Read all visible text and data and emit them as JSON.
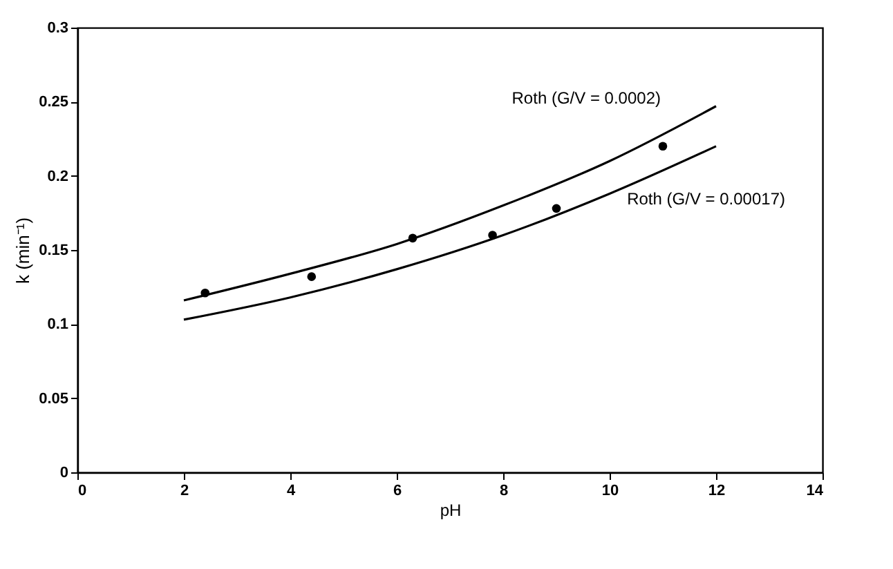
{
  "chart_data": {
    "type": "line",
    "xlabel": "pH",
    "ylabel": "k (min⁻¹)",
    "xlim": [
      0,
      14
    ],
    "xticks": [
      0,
      2,
      4,
      6,
      8,
      10,
      12,
      14
    ],
    "ylim": [
      0,
      0.3
    ],
    "yticks": [
      0,
      0.05,
      0.1,
      0.15,
      0.2,
      0.25,
      0.3
    ],
    "grid": false,
    "series": [
      {
        "type": "scatter",
        "color": "#000000",
        "marker": "circle",
        "x": [
          2.4,
          4.4,
          6.3,
          7.8,
          9.0,
          11.0
        ],
        "values": [
          0.121,
          0.132,
          0.158,
          0.16,
          0.178,
          0.22
        ]
      },
      {
        "name": "Roth (G/V = 0.0002)",
        "color": "#000000",
        "line_style": "solid",
        "x": [
          2,
          4,
          6,
          8,
          10,
          12
        ],
        "values": [
          0.116,
          0.134,
          0.154,
          0.18,
          0.21,
          0.247
        ]
      },
      {
        "name": "Roth (G/V = 0.00017)",
        "color": "#000000",
        "line_style": "solid",
        "x": [
          2,
          4,
          6,
          8,
          10,
          12
        ],
        "values": [
          0.103,
          0.118,
          0.137,
          0.16,
          0.188,
          0.22
        ]
      }
    ]
  }
}
